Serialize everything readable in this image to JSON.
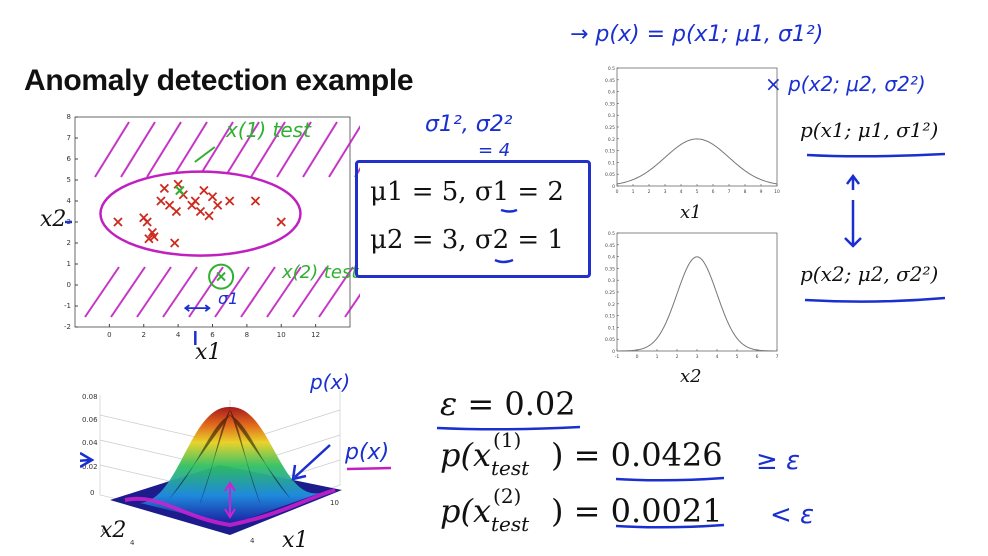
{
  "title": "Anomaly detection example",
  "params": {
    "line1": "μ1 = 5, σ1 = 2",
    "line2": "μ2 = 3, σ2 = 1"
  },
  "right_labels": {
    "p1": "p(x1; μ1, σ1²)",
    "p2": "p(x2; μ2, σ2²)",
    "plot1_xlabel": "x1",
    "plot2_xlabel": "x2"
  },
  "scatter_labels": {
    "xlabel": "x1",
    "ylabel": "x2"
  },
  "surface_labels": {
    "x": "x1",
    "y": "x2",
    "p": "p(x)"
  },
  "equations": {
    "epsilon_lhs": "ε = ",
    "epsilon_val": "0.02",
    "p1_lhs": "p(x",
    "p1_sup": "(1)",
    "p1_sub": "test",
    "p1_rhs": ") = ",
    "p1_val": "0.0426",
    "p1_cmp": "≥ ε",
    "p2_lhs": "p(x",
    "p2_sup": "(2)",
    "p2_sub": "test",
    "p2_rhs": ") = ",
    "p2_val": "0.0021",
    "p2_cmp": "< ε"
  },
  "handwriting": {
    "px_def_1": "→ p(x) = p(x1; μ1, σ1²)",
    "px_def_2": "× p(x2; μ2, σ2²)",
    "sigma_sq": "σ1², σ2²",
    "eq4": "= 4",
    "x_test1": "x(1) test",
    "x_test2": "x(2) test",
    "sigma1": "σ1",
    "px_surface": "p(x)",
    "px_surface2": "p(x)"
  },
  "colors": {
    "pen_blue": "#1a2fd0",
    "pen_pink": "#c020c0",
    "pen_green": "#30b030",
    "data_red": "#cc2a1e"
  },
  "chart_data": [
    {
      "type": "scatter",
      "xlabel": "x1",
      "ylabel": "x2",
      "xlim": [
        -2,
        14
      ],
      "ylim": [
        -2,
        8
      ],
      "x_ticks": [
        0,
        2,
        4,
        6,
        8,
        10,
        12
      ],
      "y_ticks": [
        -2,
        -1,
        0,
        1,
        2,
        3,
        4,
        5,
        6,
        7,
        8
      ],
      "points": [
        [
          0.5,
          3.0
        ],
        [
          2.0,
          3.2
        ],
        [
          2.2,
          3.0
        ],
        [
          2.5,
          2.5
        ],
        [
          2.3,
          2.2
        ],
        [
          2.6,
          2.3
        ],
        [
          3.0,
          4.0
        ],
        [
          3.2,
          4.6
        ],
        [
          3.5,
          3.8
        ],
        [
          3.8,
          2.0
        ],
        [
          4.0,
          4.8
        ],
        [
          4.3,
          4.3
        ],
        [
          4.8,
          3.8
        ],
        [
          5.0,
          4.0
        ],
        [
          5.3,
          3.5
        ],
        [
          5.5,
          4.5
        ],
        [
          5.8,
          3.3
        ],
        [
          6.0,
          4.2
        ],
        [
          6.3,
          3.8
        ],
        [
          7.0,
          4.0
        ],
        [
          8.5,
          4.0
        ],
        [
          10.0,
          3.0
        ],
        [
          3.9,
          3.5
        ]
      ]
    },
    {
      "type": "line",
      "xlabel": "x1",
      "xlim": [
        0,
        10
      ],
      "ylim": [
        0,
        0.5
      ],
      "x_ticks": [
        0,
        1,
        2,
        3,
        4,
        5,
        6,
        7,
        8,
        9,
        10
      ],
      "y_ticks": [
        0,
        0.05,
        0.1,
        0.15,
        0.2,
        0.25,
        0.3,
        0.35,
        0.4,
        0.45,
        0.5
      ],
      "mu": 5,
      "sigma": 2
    },
    {
      "type": "line",
      "xlabel": "x2",
      "xlim": [
        -1,
        7
      ],
      "ylim": [
        0,
        0.5
      ],
      "x_ticks": [
        -1,
        0,
        1,
        2,
        3,
        4,
        5,
        6,
        7
      ],
      "y_ticks": [
        0,
        0.05,
        0.1,
        0.15,
        0.2,
        0.25,
        0.3,
        0.35,
        0.4,
        0.45,
        0.5
      ],
      "mu": 3,
      "sigma": 1
    }
  ]
}
